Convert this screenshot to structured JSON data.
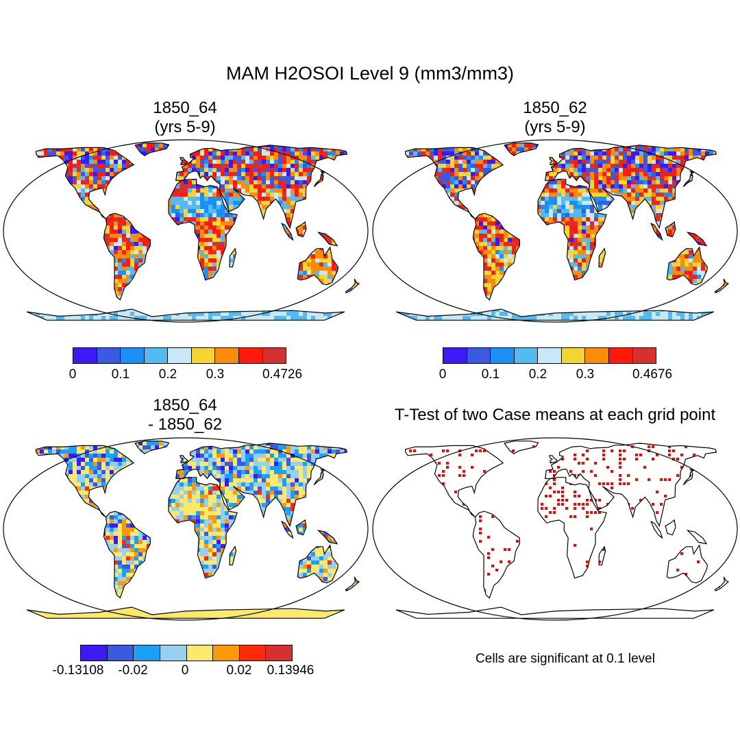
{
  "title": "MAM H2OSOI Level 9 (mm3/mm3)",
  "panels": [
    {
      "id": "p1",
      "title_line1": "1850_64",
      "title_line2": "(yrs 5-9)"
    },
    {
      "id": "p2",
      "title_line1": "1850_62",
      "title_line2": "(yrs 5-9)"
    },
    {
      "id": "p3",
      "title_line1": "1850_64",
      "title_line2": "- 1850_62"
    },
    {
      "id": "p4",
      "title_line1": "T-Test of two Case means at each grid point"
    }
  ],
  "colorbars": {
    "abs_a": {
      "colors": [
        "#3c19f5",
        "#3a5ae2",
        "#1a90f5",
        "#54bbf0",
        "#c8e7f7",
        "#f5d531",
        "#fa8c0a",
        "#ff1a0a",
        "#d63030"
      ],
      "labels": [
        "0",
        "0.1",
        "0.2",
        "0.3",
        "0.4726"
      ]
    },
    "abs_b": {
      "colors": [
        "#3c19f5",
        "#3a5ae2",
        "#1a90f5",
        "#54bbf0",
        "#c8e7f7",
        "#f5d531",
        "#fa8c0a",
        "#ff1a0a",
        "#d63030"
      ],
      "labels": [
        "0",
        "0.1",
        "0.2",
        "0.3",
        "0.4676"
      ]
    },
    "diff": {
      "colors": [
        "#3c19f5",
        "#3a5ae2",
        "#1aa0f5",
        "#96cff0",
        "#fae96a",
        "#fa9a0a",
        "#ff2a0a",
        "#d63030"
      ],
      "labels": [
        "-0.13108",
        "-0.02",
        "0",
        "0.02",
        "0.13946"
      ]
    }
  },
  "significance_note": "Cells are significant at 0.1 level",
  "significance_color": "#ff0000",
  "projection": "Robinson"
}
